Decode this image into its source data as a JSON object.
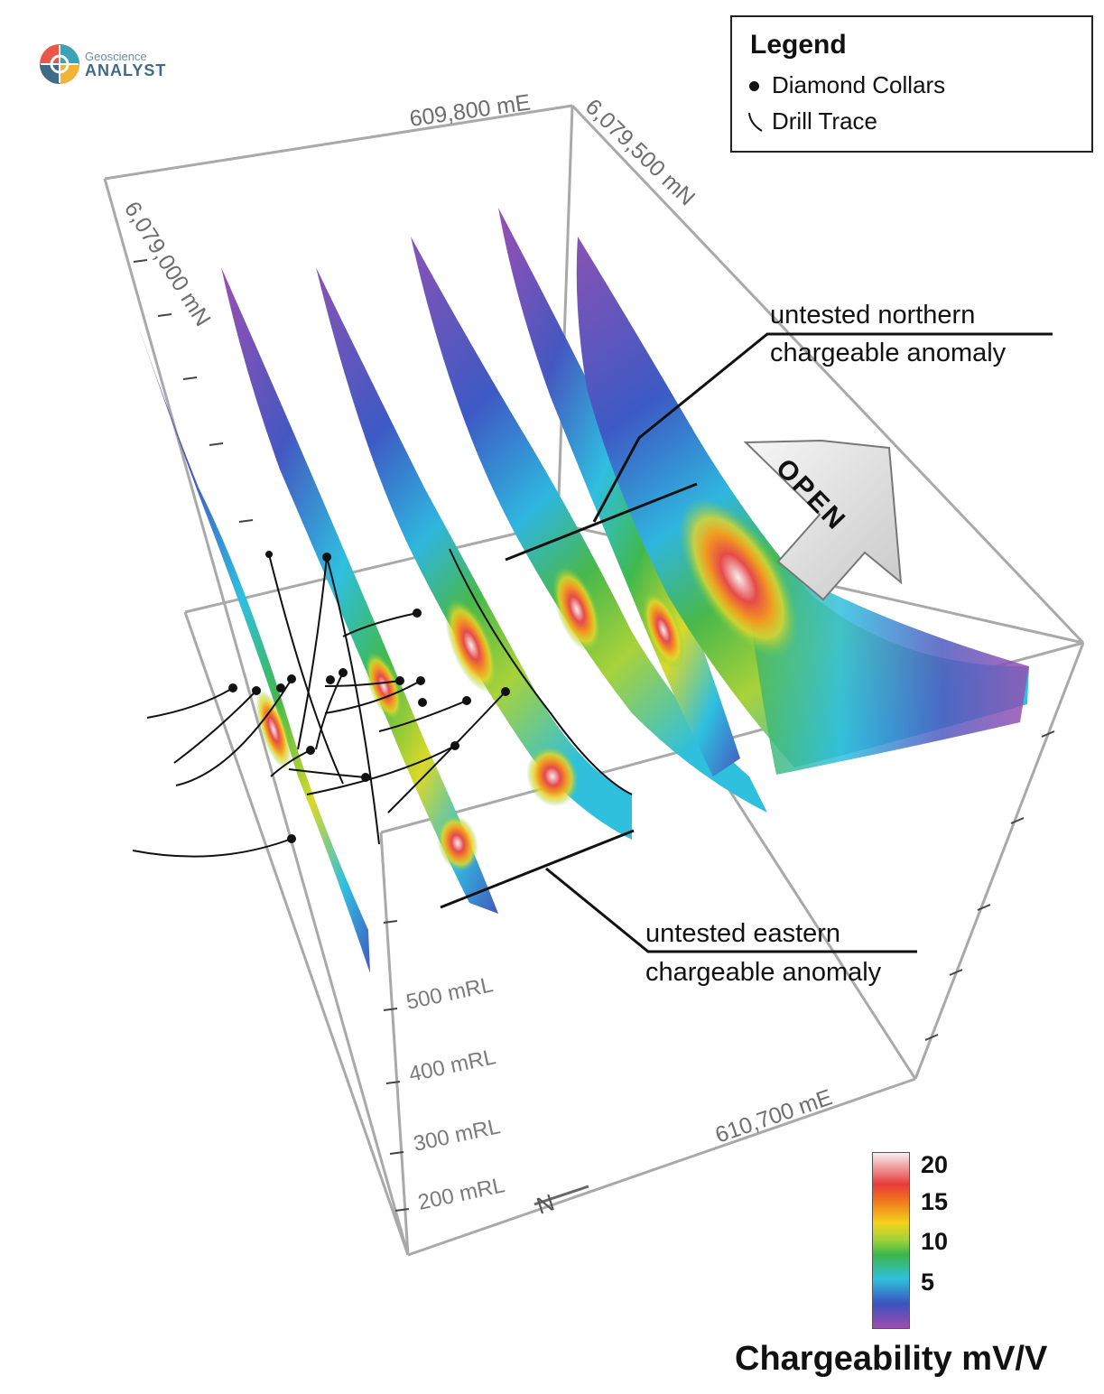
{
  "branding": {
    "logo_top": "Geoscience",
    "logo_bottom": "ANALYST"
  },
  "legend": {
    "title": "Legend",
    "items": [
      {
        "symbol": "dot",
        "label": "Diamond Collars"
      },
      {
        "symbol": "trace",
        "label": "Drill Trace"
      }
    ]
  },
  "axes": {
    "easting_top": "609,800 mE",
    "easting_bottom": "610,700 mE",
    "northing_left": "6,079,000 mN",
    "northing_right": "6,079,500 mN",
    "elevations": [
      "500 mRL",
      "400 mRL",
      "300 mRL",
      "200 mRL"
    ],
    "north_arrow": "N"
  },
  "callouts": {
    "northern": [
      "untested northern",
      "chargeable anomaly"
    ],
    "eastern": [
      "untested eastern",
      "chargeable anomaly"
    ],
    "open_arrow": "OPEN"
  },
  "colorbar": {
    "title": "Chargeability mV/V",
    "ticks": [
      "20",
      "15",
      "10",
      "5"
    ],
    "colors": [
      "#f6f0f2",
      "#e83a3a",
      "#f07c1c",
      "#f5d21c",
      "#3cb64a",
      "#2fc0dd",
      "#3a54be",
      "#a04ab0"
    ]
  }
}
